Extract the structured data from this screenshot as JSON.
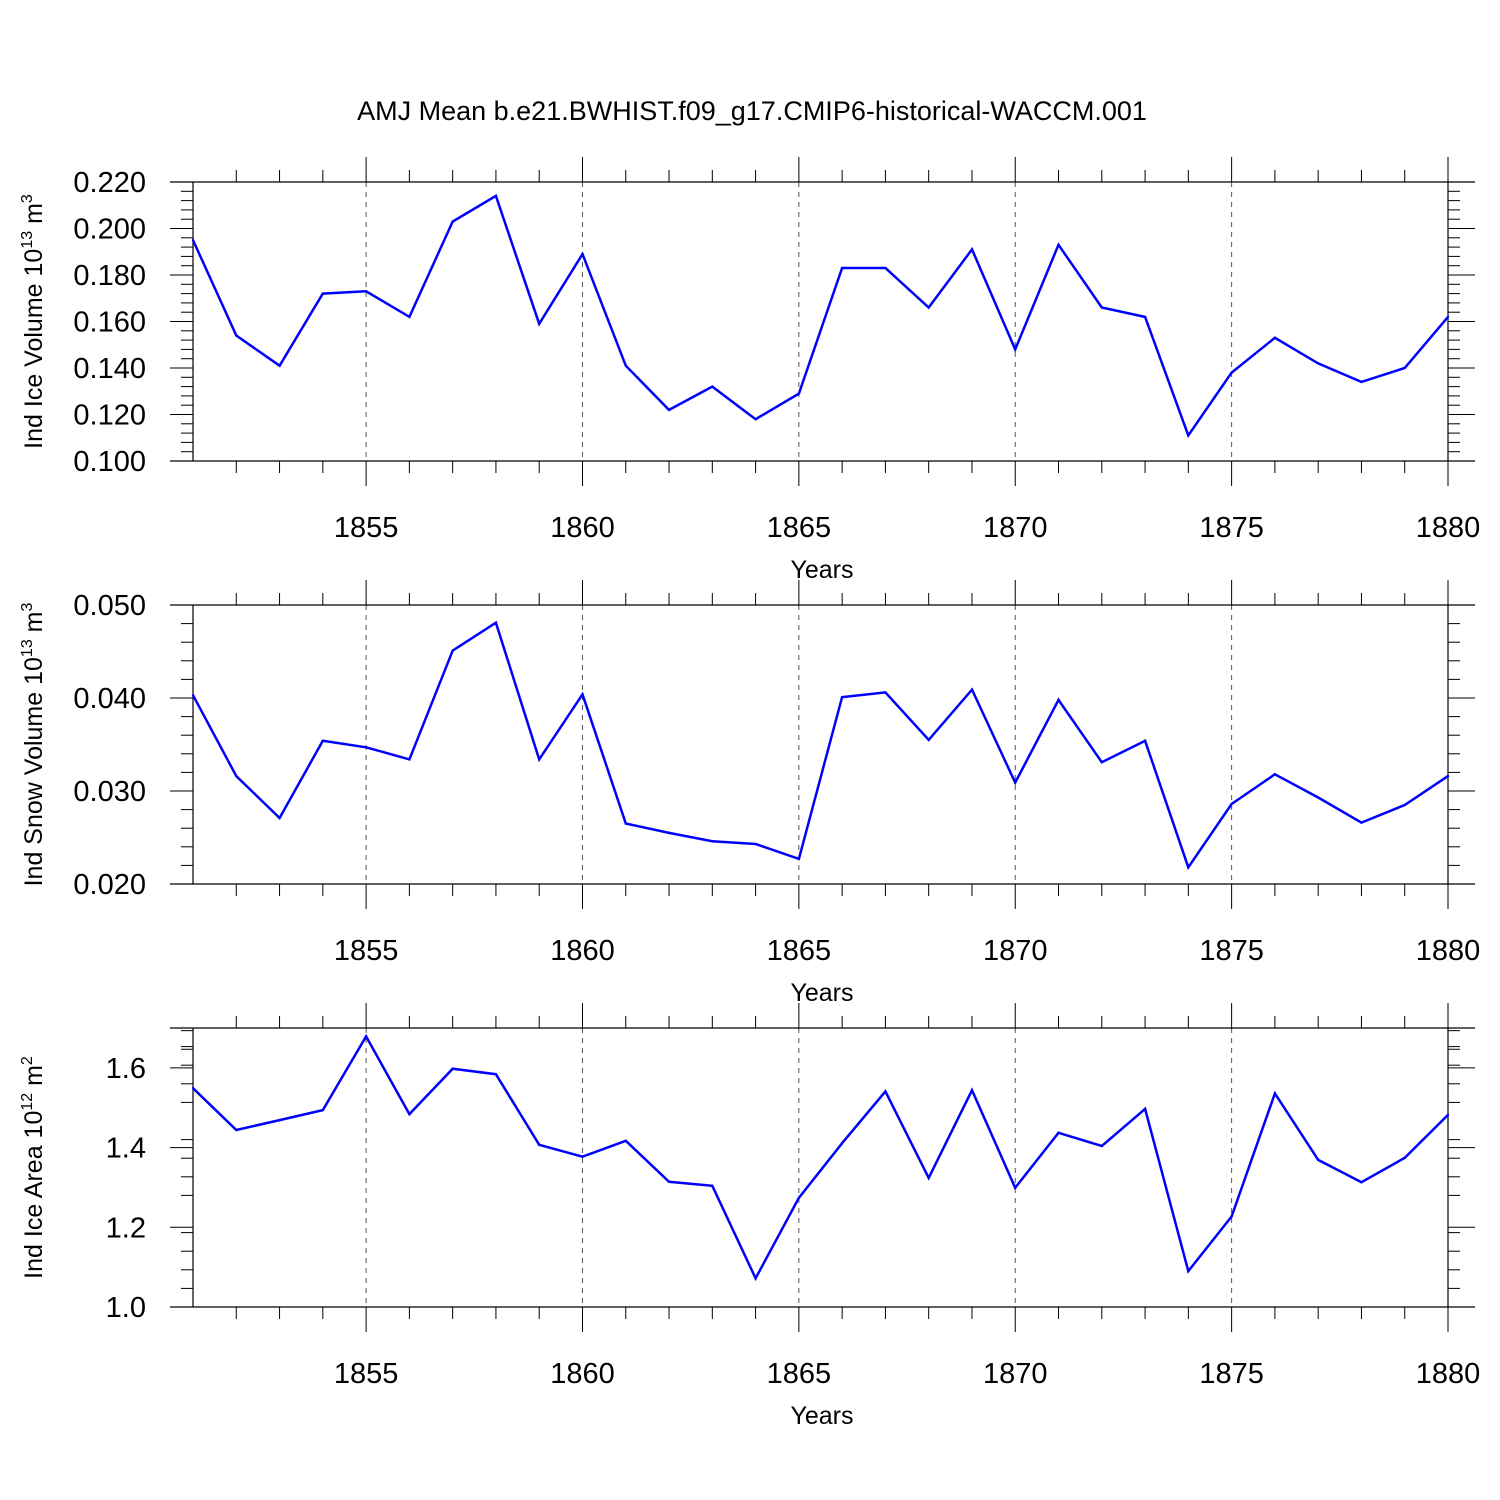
{
  "title": "AMJ Mean b.e21.BWHIST.f09_g17.CMIP6-historical-WACCM.001",
  "chart_data": [
    {
      "type": "line",
      "xlabel": "Years",
      "ylabel": {
        "prefix": "Ind Ice Volume 10",
        "exp": "13",
        "unit": " m",
        "unit_exp": "3"
      },
      "xlim": [
        1851,
        1880
      ],
      "ylim": [
        0.1,
        0.22
      ],
      "x_ticks": [
        "1855",
        "1860",
        "1865",
        "1870",
        "1875",
        "1880"
      ],
      "y_ticks": [
        "0.100",
        "0.120",
        "0.140",
        "0.160",
        "0.180",
        "0.200",
        "0.220"
      ],
      "color": "#0000ff",
      "x": [
        1851,
        1852,
        1853,
        1854,
        1855,
        1856,
        1857,
        1858,
        1859,
        1860,
        1861,
        1862,
        1863,
        1864,
        1865,
        1866,
        1867,
        1868,
        1869,
        1870,
        1871,
        1872,
        1873,
        1874,
        1875,
        1876,
        1877,
        1878,
        1879,
        1880
      ],
      "values": [
        0.195,
        0.154,
        0.141,
        0.172,
        0.173,
        0.162,
        0.203,
        0.214,
        0.159,
        0.189,
        0.141,
        0.122,
        0.132,
        0.118,
        0.129,
        0.183,
        0.183,
        0.166,
        0.191,
        0.148,
        0.193,
        0.166,
        0.162,
        0.111,
        0.138,
        0.153,
        0.142,
        0.134,
        0.14,
        0.162
      ]
    },
    {
      "type": "line",
      "xlabel": "Years",
      "ylabel": {
        "prefix": "Ind Snow Volume 10",
        "exp": "13",
        "unit": " m",
        "unit_exp": "3"
      },
      "xlim": [
        1851,
        1880
      ],
      "ylim": [
        0.02,
        0.05
      ],
      "x_ticks": [
        "1855",
        "1860",
        "1865",
        "1870",
        "1875",
        "1880"
      ],
      "y_ticks": [
        "0.020",
        "0.030",
        "0.040",
        "0.050"
      ],
      "color": "#0000ff",
      "x": [
        1851,
        1852,
        1853,
        1854,
        1855,
        1856,
        1857,
        1858,
        1859,
        1860,
        1861,
        1862,
        1863,
        1864,
        1865,
        1866,
        1867,
        1868,
        1869,
        1870,
        1871,
        1872,
        1873,
        1874,
        1875,
        1876,
        1877,
        1878,
        1879,
        1880
      ],
      "values": [
        0.0403,
        0.0316,
        0.0271,
        0.0354,
        0.0347,
        0.0334,
        0.0451,
        0.0481,
        0.0334,
        0.0404,
        0.0265,
        0.0255,
        0.0246,
        0.0243,
        0.0227,
        0.0401,
        0.0406,
        0.0355,
        0.0409,
        0.0309,
        0.0398,
        0.0331,
        0.0354,
        0.0218,
        0.0286,
        0.0318,
        0.0293,
        0.0266,
        0.0285,
        0.0316
      ]
    },
    {
      "type": "line",
      "xlabel": "Years",
      "ylabel": {
        "prefix": "Ind Ice Area 10",
        "exp": "12",
        "unit": " m",
        "unit_exp": "2"
      },
      "xlim": [
        1851,
        1880
      ],
      "ylim": [
        1.0,
        1.7
      ],
      "x_ticks": [
        "1855",
        "1860",
        "1865",
        "1870",
        "1875",
        "1880"
      ],
      "y_ticks": [
        "1.0",
        "1.2",
        "1.4",
        "1.6"
      ],
      "color": "#0000ff",
      "x": [
        1851,
        1852,
        1853,
        1854,
        1855,
        1856,
        1857,
        1858,
        1859,
        1860,
        1861,
        1862,
        1863,
        1864,
        1865,
        1866,
        1867,
        1868,
        1869,
        1870,
        1871,
        1872,
        1873,
        1874,
        1875,
        1876,
        1877,
        1878,
        1879,
        1880
      ],
      "values": [
        1.549,
        1.444,
        1.469,
        1.494,
        1.679,
        1.484,
        1.598,
        1.584,
        1.407,
        1.377,
        1.417,
        1.314,
        1.304,
        1.072,
        1.274,
        1.411,
        1.541,
        1.324,
        1.544,
        1.299,
        1.437,
        1.404,
        1.497,
        1.09,
        1.227,
        1.536,
        1.369,
        1.313,
        1.374,
        1.482
      ]
    }
  ]
}
